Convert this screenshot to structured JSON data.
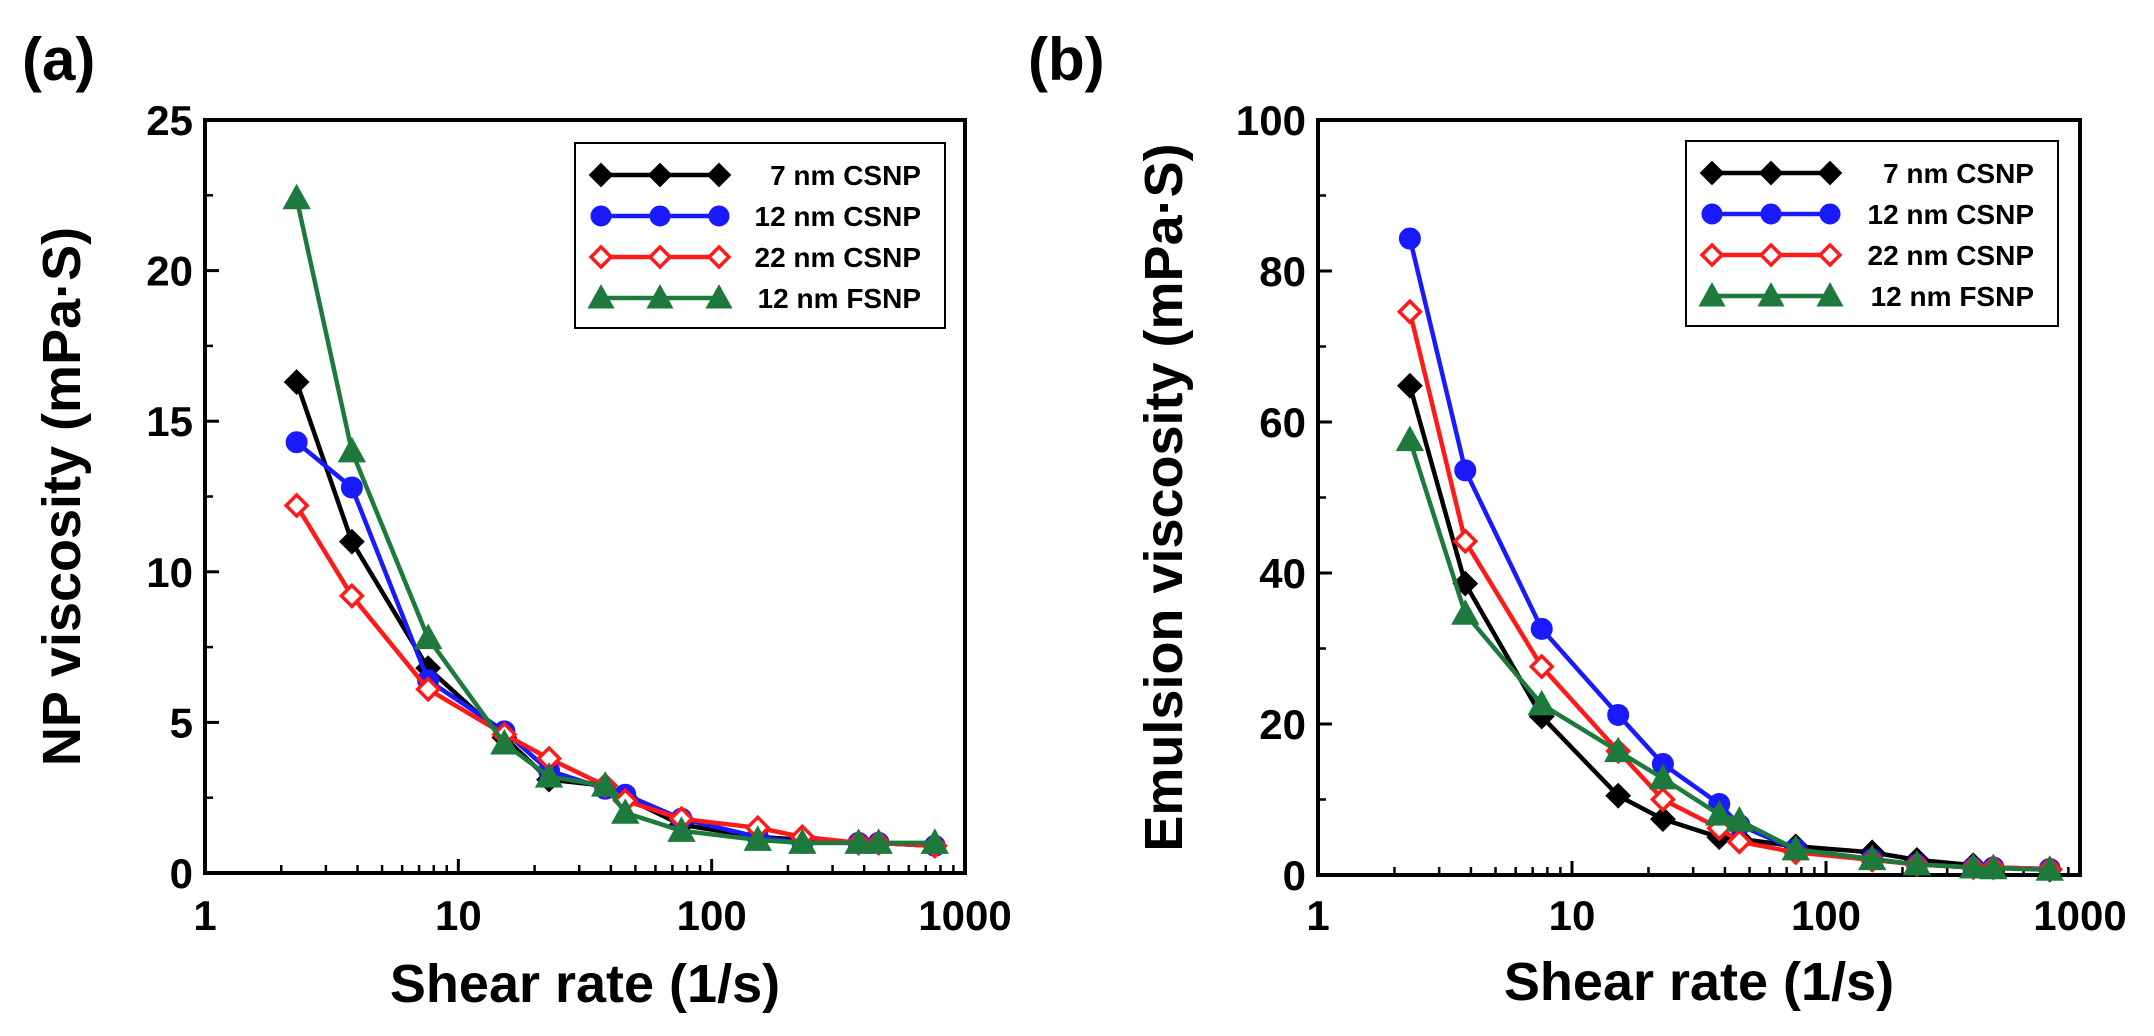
{
  "chart_data": [
    {
      "type": "line",
      "panel_label": "(a)",
      "xlabel": "Shear rate (1/s)",
      "ylabel": "NP viscosity (mPa·S)",
      "xscale": "log",
      "xlim": [
        1,
        1000
      ],
      "ylim": [
        0,
        25
      ],
      "xticks": [
        1,
        10,
        100,
        1000
      ],
      "xtick_labels": [
        "1",
        "10",
        "100",
        "1000"
      ],
      "yticks": [
        0,
        5,
        10,
        15,
        20,
        25
      ],
      "ytick_labels": [
        "0",
        "5",
        "10",
        "15",
        "20",
        "25"
      ],
      "legend_position": "top-right",
      "x": [
        2.3,
        3.8,
        7.6,
        15.2,
        22.8,
        38,
        45.6,
        76,
        152,
        228,
        380,
        456,
        760
      ],
      "series": [
        {
          "name": "7 nm CSNP",
          "color": "#000000",
          "marker": "diamond-filled",
          "values": [
            16.3,
            11.0,
            6.8,
            4.5,
            3.1,
            2.9,
            2.5,
            1.6,
            1.2,
            1.1,
            1.0,
            1.0,
            0.9
          ]
        },
        {
          "name": "12 nm CSNP",
          "color": "#1a1aff",
          "marker": "circle-filled",
          "values": [
            14.3,
            12.8,
            6.4,
            4.7,
            3.4,
            2.8,
            2.6,
            1.8,
            1.2,
            1.0,
            1.0,
            1.0,
            0.9
          ]
        },
        {
          "name": "22 nm CSNP",
          "color": "#ff1a1a",
          "marker": "diamond-open",
          "values": [
            12.2,
            9.2,
            6.1,
            4.6,
            3.8,
            2.9,
            2.4,
            1.8,
            1.5,
            1.2,
            1.0,
            1.0,
            0.9
          ]
        },
        {
          "name": "12 nm FSNP",
          "color": "#1e7a3c",
          "marker": "triangle-filled",
          "values": [
            22.4,
            14.0,
            7.8,
            4.3,
            3.2,
            2.9,
            2.0,
            1.4,
            1.1,
            1.0,
            1.0,
            1.0,
            1.0
          ]
        }
      ]
    },
    {
      "type": "line",
      "panel_label": "(b)",
      "xlabel": "Shear rate (1/s)",
      "ylabel": "Emulsion viscosity (mPa·S)",
      "xscale": "log",
      "xlim": [
        1,
        1000
      ],
      "ylim": [
        0,
        100
      ],
      "xticks": [
        1,
        10,
        100,
        1000
      ],
      "xtick_labels": [
        "1",
        "10",
        "100",
        "1000"
      ],
      "yticks": [
        0,
        20,
        40,
        60,
        80,
        100
      ],
      "ytick_labels": [
        "0",
        "20",
        "40",
        "60",
        "80",
        "100"
      ],
      "legend_position": "top-right",
      "x": [
        2.3,
        3.8,
        7.6,
        15.2,
        22.8,
        38,
        45.6,
        76,
        152,
        228,
        380,
        456,
        760
      ],
      "series": [
        {
          "name": "7 nm CSNP",
          "color": "#000000",
          "marker": "diamond-filled",
          "values": [
            64.8,
            38.6,
            21.0,
            10.5,
            7.4,
            5.0,
            4.8,
            3.8,
            3.0,
            2.0,
            1.3,
            1.0,
            0.7
          ]
        },
        {
          "name": "12 nm CSNP",
          "color": "#1a1aff",
          "marker": "circle-filled",
          "values": [
            84.3,
            53.6,
            32.6,
            21.2,
            14.7,
            9.4,
            6.6,
            3.4,
            2.1,
            1.4,
            1.0,
            1.0,
            0.8
          ]
        },
        {
          "name": "22 nm CSNP",
          "color": "#ff1a1a",
          "marker": "diamond-open",
          "values": [
            74.6,
            44.2,
            27.6,
            16.4,
            10.0,
            6.2,
            4.4,
            3.0,
            2.0,
            1.4,
            1.0,
            1.0,
            0.8
          ]
        },
        {
          "name": "12 nm FSNP",
          "color": "#1e7a3c",
          "marker": "triangle-filled",
          "values": [
            57.6,
            34.6,
            22.6,
            16.4,
            12.8,
            8.0,
            7.2,
            3.4,
            2.1,
            1.4,
            1.0,
            0.9,
            0.7
          ]
        }
      ]
    }
  ]
}
